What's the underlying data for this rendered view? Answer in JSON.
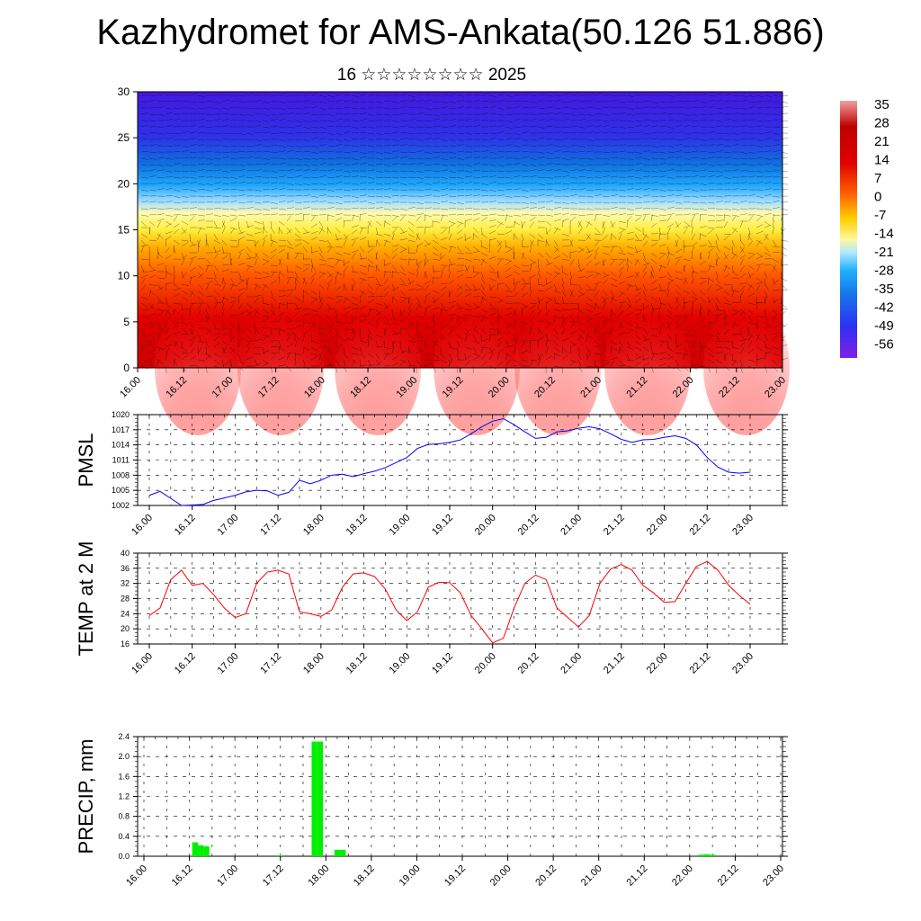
{
  "page": {
    "title": "Kazhydromet for AMS-Ankata(50.126 51.886)",
    "subtitle": "16 ☆☆☆☆☆☆☆☆ 2025"
  },
  "colors": {
    "pmsl_line": "#0000ff",
    "temp_line": "#ff0000",
    "precip_bar": "#00ee00"
  },
  "time_ticks": [
    "16.00",
    "16.12",
    "17.00",
    "17.12",
    "18.00",
    "18.12",
    "19.00",
    "19.12",
    "20.00",
    "20.12",
    "21.00",
    "21.12",
    "22.00",
    "22.12",
    "23.00"
  ],
  "colorbar": {
    "labels": [
      "35",
      "28",
      "21",
      "14",
      "7",
      "0",
      "-7",
      "-14",
      "-21",
      "-28",
      "-35",
      "-42",
      "-49",
      "-56"
    ]
  },
  "chart_data": [
    {
      "type": "heatmap",
      "description_of_fields": "vertical cross-section: shaded temperature with wind barbs",
      "ylim": [
        0,
        30
      ],
      "y_ticks": [
        "0",
        "5",
        "10",
        "15",
        "20",
        "25",
        "30"
      ],
      "x_ticks": [
        "16.00",
        "16.12",
        "17.00",
        "17.12",
        "18.00",
        "18.12",
        "19.00",
        "19.12",
        "20.00",
        "20.12",
        "21.00",
        "21.12",
        "22.00",
        "22.12",
        "23.00"
      ],
      "colorbar_range": [
        -56,
        35
      ],
      "color_scale": "red (warm, low levels) to yellow near 15 to blue/purple (cold, upper levels)"
    },
    {
      "type": "line",
      "ylabel": "PMSL",
      "ylim": [
        1002,
        1020
      ],
      "y_ticks": [
        "1002",
        "1005",
        "1008",
        "1011",
        "1014",
        "1017",
        "1020"
      ],
      "x": [
        0,
        1,
        2,
        3,
        4,
        5,
        6,
        7,
        8,
        9,
        10,
        11,
        12,
        13,
        14,
        15,
        16,
        17,
        18,
        19,
        20,
        21,
        22,
        23,
        24,
        25,
        26,
        27,
        28,
        29,
        30,
        31,
        32,
        33,
        34,
        35,
        36,
        37,
        38,
        39,
        40,
        41,
        42,
        43,
        44,
        45,
        46,
        47,
        48,
        49,
        50,
        51,
        52,
        53,
        54,
        55,
        56
      ],
      "series": [
        {
          "values": [
            1004.0,
            1004.8,
            1003.4,
            1002.0,
            1002.1,
            1002.2,
            1003.0,
            1003.5,
            1004.0,
            1004.7,
            1005.0,
            1004.9,
            1004.0,
            1004.6,
            1007.0,
            1006.3,
            1007.0,
            1008.0,
            1008.2,
            1007.7,
            1008.3,
            1008.8,
            1009.5,
            1010.5,
            1011.5,
            1013.3,
            1014.1,
            1014.2,
            1014.5,
            1015.0,
            1016.2,
            1017.6,
            1018.7,
            1019.2,
            1018.0,
            1016.6,
            1015.3,
            1015.5,
            1016.6,
            1016.8,
            1017.3,
            1017.6,
            1017.2,
            1016.2,
            1015.1,
            1014.5,
            1015.0,
            1015.1,
            1015.5,
            1015.8,
            1015.3,
            1014.0,
            1011.5,
            1009.6,
            1008.6,
            1008.4,
            1008.6
          ]
        }
      ]
    },
    {
      "type": "line",
      "ylabel": "TEMP at 2 M",
      "ylim": [
        16,
        40
      ],
      "y_ticks": [
        "16",
        "20",
        "24",
        "28",
        "32",
        "36",
        "40"
      ],
      "x": [
        0,
        1,
        2,
        3,
        4,
        5,
        6,
        7,
        8,
        9,
        10,
        11,
        12,
        13,
        14,
        15,
        16,
        17,
        18,
        19,
        20,
        21,
        22,
        23,
        24,
        25,
        26,
        27,
        28,
        29,
        30,
        31,
        32,
        33,
        34,
        35,
        36,
        37,
        38,
        39,
        40,
        41,
        42,
        43,
        44,
        45,
        46,
        47,
        48,
        49,
        50,
        51,
        52,
        53,
        54,
        55,
        56
      ],
      "series": [
        {
          "values": [
            23.5,
            25.5,
            33.0,
            35.5,
            31.5,
            32.0,
            29.0,
            25.5,
            23.0,
            24.0,
            32.0,
            35.0,
            35.5,
            34.5,
            24.5,
            24.0,
            23.3,
            25.0,
            31.0,
            34.5,
            34.8,
            33.8,
            30.5,
            25.0,
            22.2,
            24.5,
            31.0,
            32.3,
            32.2,
            29.5,
            23.5,
            20.0,
            16.3,
            17.5,
            25.5,
            32.0,
            34.2,
            33.0,
            25.5,
            23.0,
            20.5,
            23.5,
            32.0,
            35.8,
            37.0,
            35.5,
            31.5,
            29.5,
            27.0,
            27.2,
            32.0,
            36.5,
            37.8,
            35.5,
            31.5,
            28.8,
            26.5
          ]
        }
      ]
    },
    {
      "type": "bar",
      "ylabel": "PRECIP, mm",
      "ylim": [
        0,
        2.4
      ],
      "y_ticks": [
        "0.0",
        "0.4",
        "0.8",
        "1.2",
        "1.6",
        "2.0",
        "2.4"
      ],
      "x": [
        4.5,
        5,
        5.5,
        12,
        15,
        15.5,
        17,
        17.5,
        49,
        49.5,
        50
      ],
      "values": [
        0.28,
        0.22,
        0.2,
        0.02,
        2.3,
        2.3,
        0.13,
        0.13,
        0.03,
        0.04,
        0.03
      ]
    }
  ]
}
